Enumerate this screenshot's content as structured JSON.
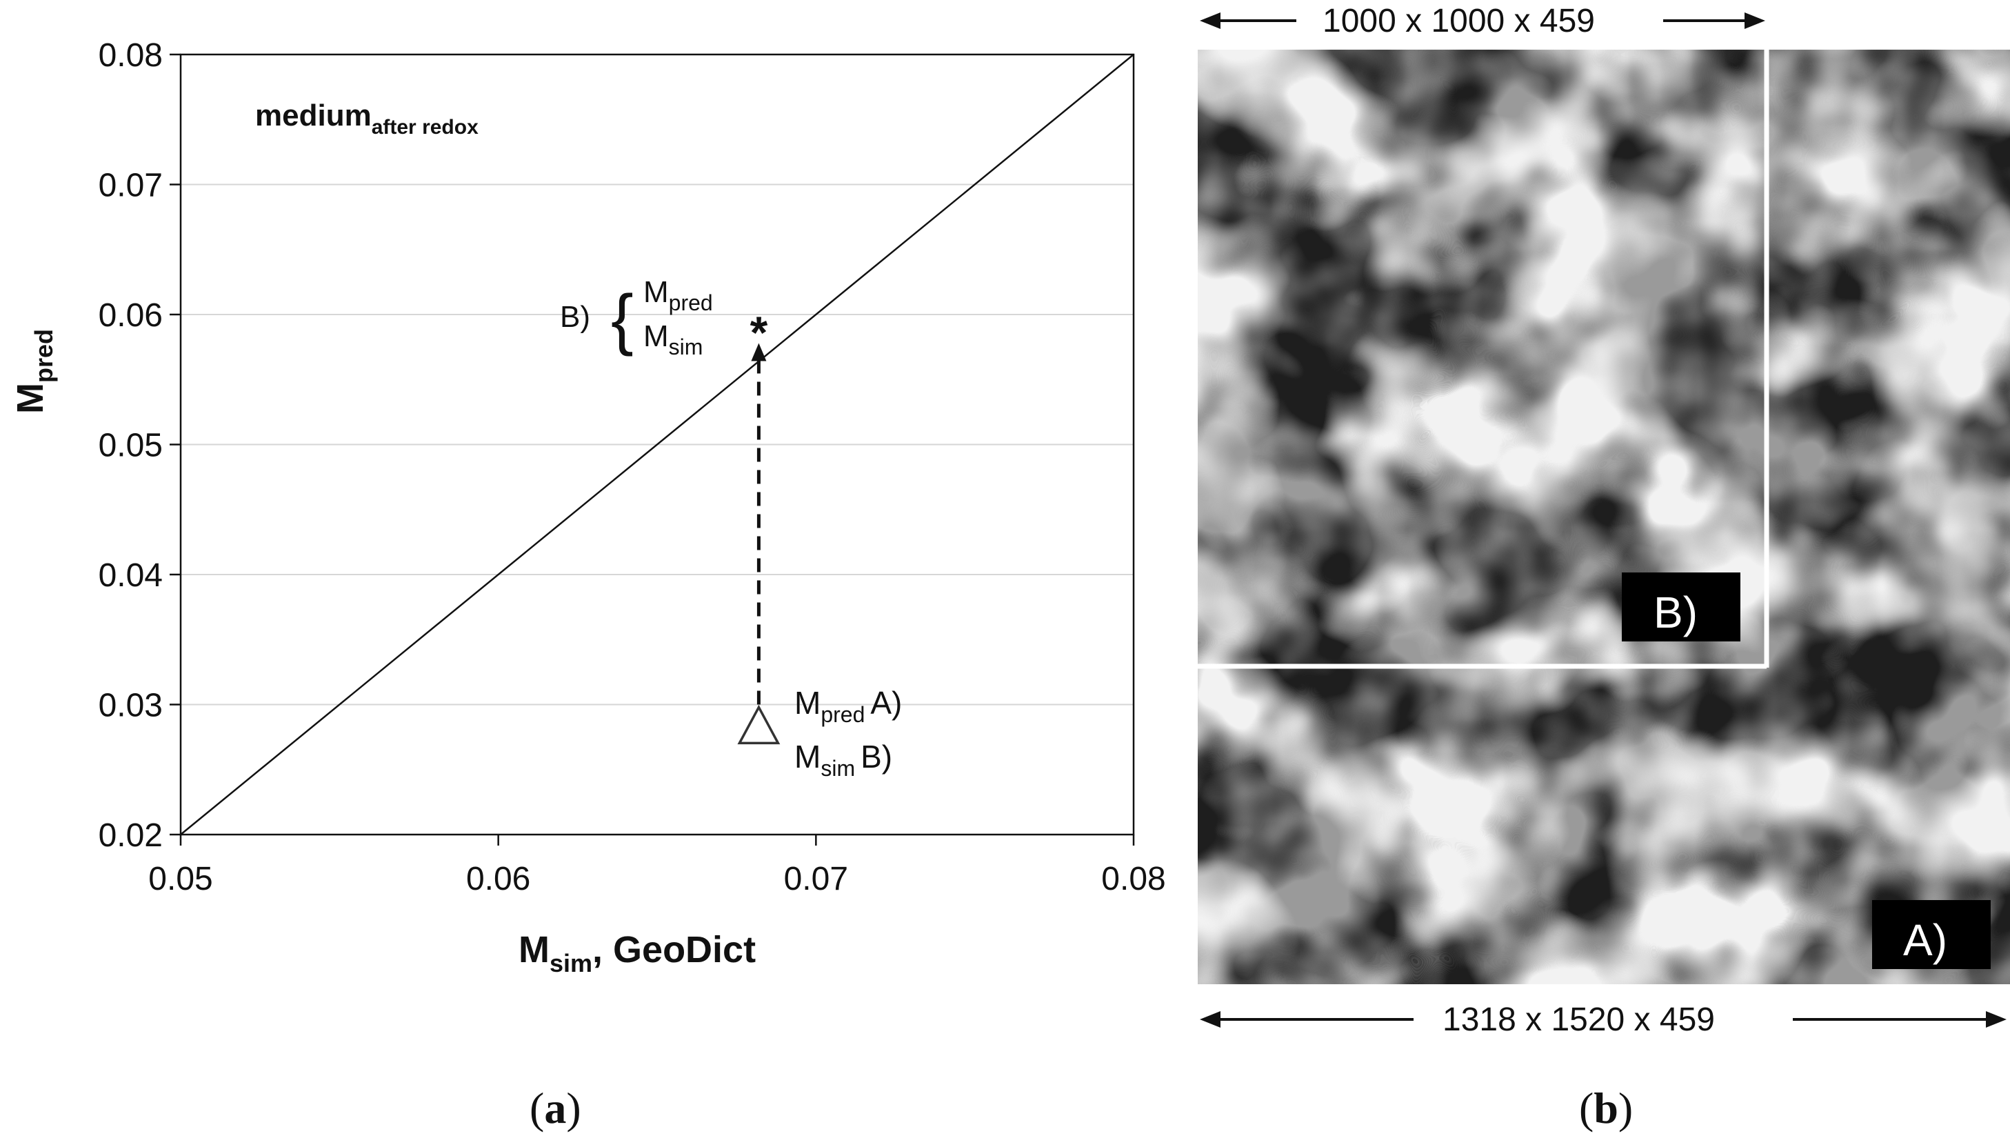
{
  "chart_data": {
    "type": "scatter",
    "title_main": "medium",
    "title_sub": "after redox",
    "xlabel_main": "M",
    "xlabel_sub": "sim",
    "xlabel_rest": ", GeoDict",
    "ylabel_main": "M",
    "ylabel_sub": "pred",
    "xlim": [
      0.05,
      0.08
    ],
    "ylim": [
      0.02,
      0.08
    ],
    "x_ticks": [
      "0.05",
      "0.06",
      "0.07",
      "0.08"
    ],
    "y_ticks": [
      "0.02",
      "0.03",
      "0.04",
      "0.05",
      "0.06",
      "0.07",
      "0.08"
    ],
    "grid": "horizontal",
    "identity_line": {
      "x": [
        0.05,
        0.08
      ],
      "y": [
        0.02,
        0.08
      ]
    },
    "points": [
      {
        "label": "A",
        "marker": "triangle",
        "x": 0.0682,
        "y": 0.0282
      },
      {
        "label": "B",
        "marker": "asterisk",
        "x": 0.0682,
        "y": 0.059
      }
    ],
    "arrow": {
      "from": [
        0.0682,
        0.03
      ],
      "to": [
        0.0682,
        0.0578
      ]
    },
    "annotations": {
      "b_prefix": "B)",
      "b_brace": "{",
      "b_line1_main": "M",
      "b_line1_sub": "pred",
      "b_line2_main": "M",
      "b_line2_sub": "sim",
      "a_line1_main": "M",
      "a_line1_sub": "pred",
      "a_line1_rest": "A)",
      "a_line2_main": "M",
      "a_line2_sub": "sim",
      "a_line2_rest": "B)"
    }
  },
  "microstructure": {
    "dims_top": "1000 x 1000 x 459",
    "dims_bottom": "1318 x 1520 x 459",
    "label_b": "B)",
    "label_a": "A)",
    "colors": {
      "pore": "#1e1e1e",
      "phase_gray": "#9a9a9a",
      "phase_white": "#f2f2f2"
    }
  },
  "captions": {
    "a": "a",
    "b": "b"
  }
}
